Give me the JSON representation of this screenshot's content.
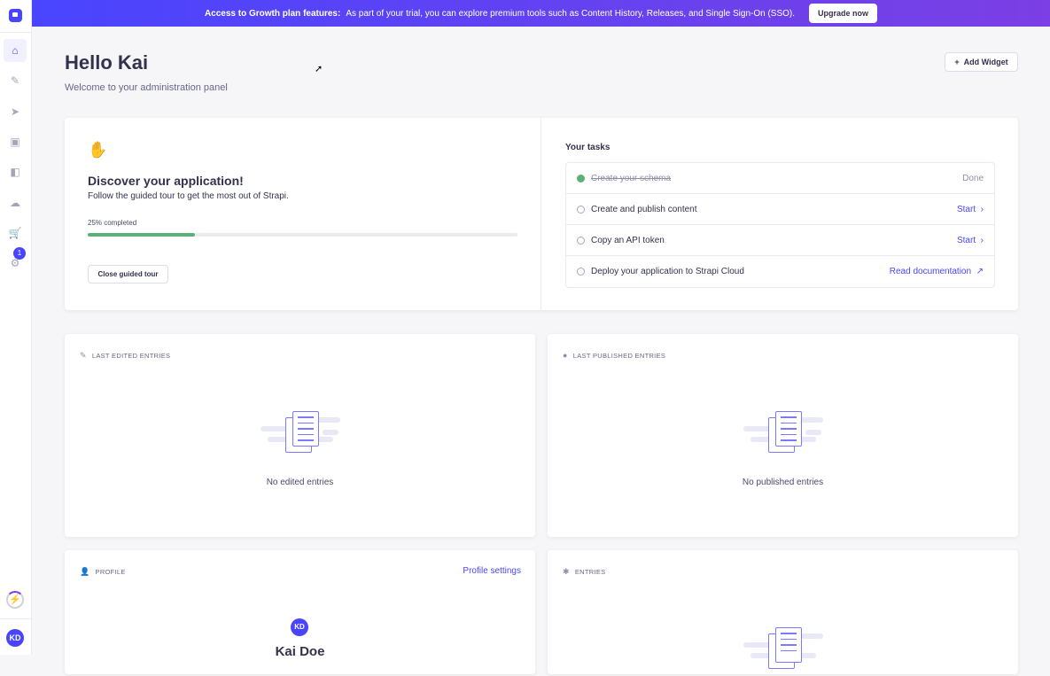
{
  "banner": {
    "bold": "Access to Growth plan features:",
    "text": "As part of your trial, you can explore premium tools such as Content History, Releases, and Single Sign-On (SSO).",
    "button": "Upgrade now"
  },
  "sidebar": {
    "items": [
      "home",
      "content-manager",
      "deploy",
      "media-library",
      "content-type-builder",
      "cloud",
      "marketplace",
      "settings"
    ],
    "settings_badge": "1",
    "user_initials": "KD"
  },
  "header": {
    "title": "Hello Kai",
    "subtitle": "Welcome to your administration panel",
    "add_widget": "Add Widget"
  },
  "tour": {
    "title": "Discover your application!",
    "description": "Follow the guided tour to get the most out of Strapi.",
    "progress_label": "25% completed",
    "progress": 0.25,
    "close_button": "Close guided tour"
  },
  "tasks": {
    "title": "Your tasks",
    "items": [
      {
        "label": "Create your schema",
        "action": "Done",
        "done": true
      },
      {
        "label": "Create and publish content",
        "action": "Start",
        "done": false
      },
      {
        "label": "Copy an API token",
        "action": "Start",
        "done": false
      },
      {
        "label": "Deploy your application to Strapi Cloud",
        "action": "Read documentation",
        "done": false
      }
    ]
  },
  "widgets": {
    "last_edited": {
      "title": "LAST EDITED ENTRIES",
      "empty": "No edited entries"
    },
    "last_published": {
      "title": "LAST PUBLISHED ENTRIES",
      "empty": "No published entries"
    },
    "profile": {
      "title": "PROFILE",
      "link": "Profile settings",
      "initials": "KD",
      "name": "Kai Doe"
    },
    "entries": {
      "title": "ENTRIES"
    }
  },
  "colors": {
    "primary": "#4945ff",
    "success": "#5cb176"
  }
}
